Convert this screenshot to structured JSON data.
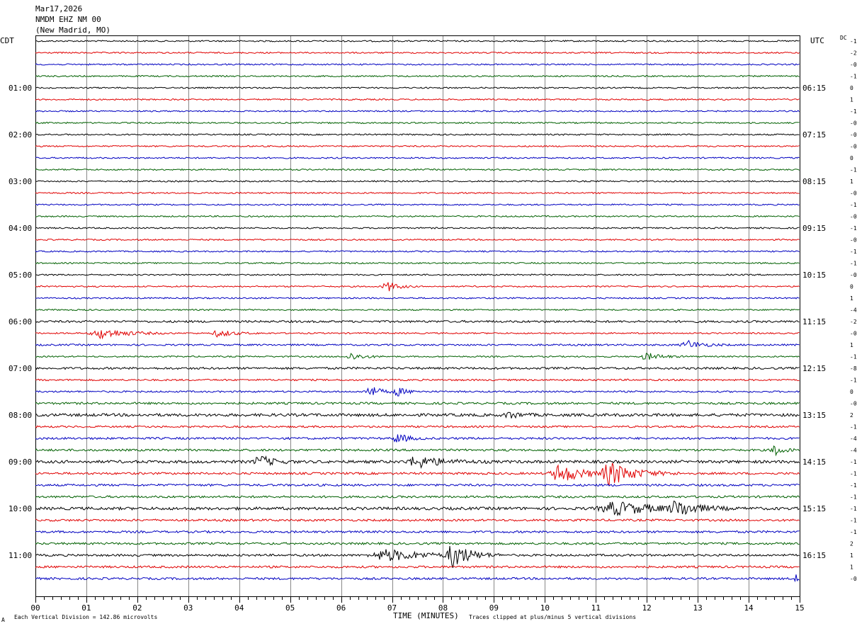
{
  "header": {
    "date": "Mar17,2026",
    "station": "NMDM EHZ NM 00",
    "location": "(New Madrid, MO)"
  },
  "labels": {
    "left_tz": "CDT",
    "right_tz": "UTC",
    "right_col": "DC",
    "xlabel": "TIME (MINUTES)",
    "scale_note": "Each Vertical Division =  142.86 microvolts",
    "clip_note": "Traces clipped at plus/minus 5 vertical divisions",
    "corner_mark": "A"
  },
  "chart_data": {
    "type": "line",
    "subtype": "helicorder",
    "x_ticks": [
      "00",
      "01",
      "02",
      "03",
      "04",
      "05",
      "06",
      "07",
      "08",
      "09",
      "10",
      "11",
      "12",
      "13",
      "14",
      "15"
    ],
    "xlim": [
      0,
      15
    ],
    "trace_colors": [
      "#000000",
      "#e00000",
      "#0000c0",
      "#006000"
    ],
    "left_hour_labels": [
      "01:00",
      "02:00",
      "03:00",
      "04:00",
      "05:00",
      "06:00",
      "07:00",
      "08:00",
      "09:00",
      "10:00",
      "11:00"
    ],
    "right_hour_labels": [
      "06:15",
      "07:15",
      "08:15",
      "09:15",
      "10:15",
      "11:15",
      "12:15",
      "13:15",
      "14:15",
      "15:15",
      "16:15"
    ],
    "dc_offsets": [
      "-1",
      "-2",
      "-0",
      "-1",
      "0",
      "1",
      "-1",
      "-0",
      "-0",
      "-0",
      "0",
      "-1",
      "1",
      "-0",
      "-1",
      "-0",
      "-1",
      "-0",
      "-1",
      "-1",
      "-0",
      "0",
      "1",
      "-4",
      "-2",
      "-0",
      "1",
      "-1",
      "-8",
      "-1",
      "0",
      "-0",
      "2",
      "-1",
      "-4",
      "-4",
      "-1",
      "-1",
      "-1",
      "-1",
      "-1",
      "-1",
      "-1",
      "2",
      "1",
      "1",
      "-0"
    ],
    "noise_levels": [
      1,
      1,
      1,
      1,
      1,
      1,
      1,
      1,
      1,
      1,
      1,
      1,
      1,
      1,
      1,
      1,
      1,
      1,
      1,
      1,
      1,
      1,
      1,
      1,
      1.5,
      1,
      1.2,
      1,
      1.5,
      1.2,
      1.2,
      1.5,
      2,
      1.3,
      1.5,
      1.5,
      2,
      1.5,
      1.5,
      1.5,
      2,
      1.5,
      1.5,
      1.5,
      1.5,
      1.5,
      1.5
    ],
    "events": [
      {
        "row": 21,
        "t": 6.9,
        "amp": 8,
        "dur": 0.4
      },
      {
        "row": 25,
        "t": 1.3,
        "amp": 7,
        "dur": 1.0
      },
      {
        "row": 25,
        "t": 3.6,
        "amp": 5,
        "dur": 0.6
      },
      {
        "row": 26,
        "t": 12.8,
        "amp": 6,
        "dur": 0.6
      },
      {
        "row": 27,
        "t": 6.2,
        "amp": 5,
        "dur": 0.5
      },
      {
        "row": 27,
        "t": 12.0,
        "amp": 5,
        "dur": 0.6
      },
      {
        "row": 30,
        "t": 6.55,
        "amp": 9,
        "dur": 0.4
      },
      {
        "row": 30,
        "t": 7.1,
        "amp": 6,
        "dur": 0.4
      },
      {
        "row": 32,
        "t": 9.3,
        "amp": 5,
        "dur": 0.4
      },
      {
        "row": 34,
        "t": 7.1,
        "amp": 7,
        "dur": 0.4
      },
      {
        "row": 35,
        "t": 14.5,
        "amp": 9,
        "dur": 0.3
      },
      {
        "row": 36,
        "t": 4.4,
        "amp": 9,
        "dur": 0.5
      },
      {
        "row": 36,
        "t": 7.5,
        "amp": 8,
        "dur": 1.0
      },
      {
        "row": 37,
        "t": 10.3,
        "amp": 13,
        "dur": 0.9
      },
      {
        "row": 37,
        "t": 11.3,
        "amp": 15,
        "dur": 1.0
      },
      {
        "row": 40,
        "t": 11.4,
        "amp": 9,
        "dur": 1.6
      },
      {
        "row": 40,
        "t": 12.6,
        "amp": 11,
        "dur": 0.7
      },
      {
        "row": 44,
        "t": 6.9,
        "amp": 8,
        "dur": 1.5
      },
      {
        "row": 44,
        "t": 8.2,
        "amp": 18,
        "dur": 0.6
      },
      {
        "row": 46,
        "t": 14.9,
        "amp": 6,
        "dur": 0.2
      }
    ]
  }
}
